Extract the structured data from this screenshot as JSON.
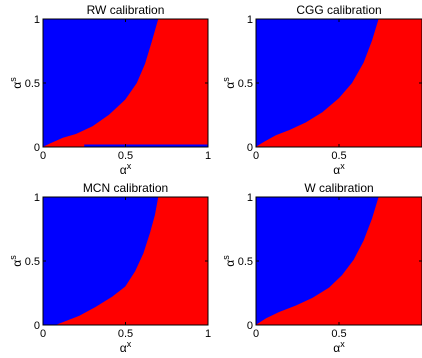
{
  "colors": {
    "region_a": "#0000ff",
    "region_b": "#ff0000",
    "frame": "#000000"
  },
  "chart_data": [
    {
      "type": "area",
      "title": "RW calibration",
      "xlabel": {
        "base": "α",
        "sup": "x"
      },
      "ylabel": {
        "base": "α",
        "sup": "s"
      },
      "xlim": [
        0,
        1
      ],
      "ylim": [
        0,
        1
      ],
      "xticks": [
        "0",
        "0.5",
        "1"
      ],
      "yticks": [
        "0",
        "0.5",
        "1"
      ],
      "boundary": [
        {
          "x": 0.0,
          "y": 0.0
        },
        {
          "x": 0.05,
          "y": 0.03
        },
        {
          "x": 0.12,
          "y": 0.07
        },
        {
          "x": 0.2,
          "y": 0.1
        },
        {
          "x": 0.3,
          "y": 0.16
        },
        {
          "x": 0.4,
          "y": 0.25
        },
        {
          "x": 0.5,
          "y": 0.37
        },
        {
          "x": 0.57,
          "y": 0.5
        },
        {
          "x": 0.62,
          "y": 0.65
        },
        {
          "x": 0.66,
          "y": 0.82
        },
        {
          "x": 0.7,
          "y": 1.0
        }
      ],
      "bottom_strip": {
        "x_from": 0.25,
        "x_to": 1.0
      }
    },
    {
      "type": "area",
      "title": "CGG calibration",
      "xlabel": {
        "base": "α",
        "sup": "x"
      },
      "ylabel": {
        "base": "α",
        "sup": "s"
      },
      "xlim": [
        0,
        1
      ],
      "ylim": [
        0,
        1
      ],
      "xticks": [
        "0",
        "0.5",
        ""
      ],
      "yticks": [
        "0",
        "0.5",
        "1"
      ],
      "boundary": [
        {
          "x": 0.0,
          "y": 0.0
        },
        {
          "x": 0.05,
          "y": 0.04
        },
        {
          "x": 0.12,
          "y": 0.09
        },
        {
          "x": 0.2,
          "y": 0.13
        },
        {
          "x": 0.3,
          "y": 0.19
        },
        {
          "x": 0.4,
          "y": 0.27
        },
        {
          "x": 0.5,
          "y": 0.38
        },
        {
          "x": 0.58,
          "y": 0.5
        },
        {
          "x": 0.65,
          "y": 0.66
        },
        {
          "x": 0.7,
          "y": 0.83
        },
        {
          "x": 0.74,
          "y": 1.0
        }
      ]
    },
    {
      "type": "area",
      "title": "MCN calibration",
      "xlabel": {
        "base": "α",
        "sup": "x"
      },
      "ylabel": {
        "base": "α",
        "sup": "s"
      },
      "xlim": [
        0,
        1
      ],
      "ylim": [
        0,
        1
      ],
      "xticks": [
        "0",
        "0.5",
        "1"
      ],
      "yticks": [
        "0",
        "0.5",
        "1"
      ],
      "boundary": [
        {
          "x": 0.08,
          "y": 0.0
        },
        {
          "x": 0.14,
          "y": 0.03
        },
        {
          "x": 0.22,
          "y": 0.07
        },
        {
          "x": 0.32,
          "y": 0.14
        },
        {
          "x": 0.42,
          "y": 0.22
        },
        {
          "x": 0.5,
          "y": 0.3
        },
        {
          "x": 0.56,
          "y": 0.42
        },
        {
          "x": 0.61,
          "y": 0.56
        },
        {
          "x": 0.65,
          "y": 0.72
        },
        {
          "x": 0.68,
          "y": 0.86
        },
        {
          "x": 0.7,
          "y": 1.0
        }
      ]
    },
    {
      "type": "area",
      "title": "W calibration",
      "xlabel": {
        "base": "α",
        "sup": "x"
      },
      "ylabel": {
        "base": "α",
        "sup": "s"
      },
      "xlim": [
        0,
        1
      ],
      "ylim": [
        0,
        1
      ],
      "xticks": [
        "0",
        "0.5",
        ""
      ],
      "yticks": [
        "0",
        "0.5",
        "1"
      ],
      "boundary": [
        {
          "x": 0.0,
          "y": 0.0
        },
        {
          "x": 0.06,
          "y": 0.05
        },
        {
          "x": 0.14,
          "y": 0.1
        },
        {
          "x": 0.24,
          "y": 0.15
        },
        {
          "x": 0.34,
          "y": 0.21
        },
        {
          "x": 0.44,
          "y": 0.29
        },
        {
          "x": 0.52,
          "y": 0.39
        },
        {
          "x": 0.59,
          "y": 0.51
        },
        {
          "x": 0.65,
          "y": 0.66
        },
        {
          "x": 0.7,
          "y": 0.83
        },
        {
          "x": 0.74,
          "y": 1.0
        }
      ]
    }
  ]
}
